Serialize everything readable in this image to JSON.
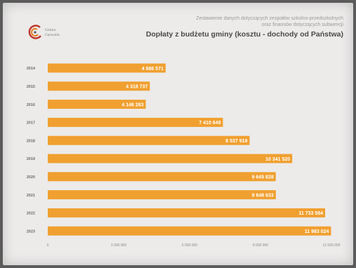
{
  "logo": {
    "line1": "Gmina",
    "line2": "Garwolin",
    "colors": [
      "#c0392b",
      "#e67e22",
      "#555555"
    ]
  },
  "header": {
    "subtitle_line1": "Zestawienie danych dotyczących zespołów szkolno-przedszkolnych",
    "subtitle_line2": "oraz finansów dotyczących subwencji",
    "title": "Dopłaty z budżetu gminy (kosztu - dochody od Państwa)"
  },
  "chart_data": {
    "type": "bar",
    "orientation": "horizontal",
    "title": "Dopłaty z budżetu gminy (kosztu - dochody od Państwa)",
    "categories": [
      "2014",
      "2015",
      "2016",
      "2017",
      "2018",
      "2019",
      "2020",
      "2021",
      "2022",
      "2023"
    ],
    "values": [
      4986571,
      4318737,
      4146283,
      7410649,
      8537919,
      10341520,
      9645828,
      9648633,
      11733584,
      11983024
    ],
    "value_labels": [
      "4 986 571",
      "4 318 737",
      "4 146 283",
      "7 410 649",
      "8 537 919",
      "10 341 520",
      "9 645 828",
      "9 648 633",
      "11 733 584",
      "11 983 024"
    ],
    "xlim": [
      0,
      12000000
    ],
    "xticks": [
      0,
      3000000,
      6000000,
      9000000,
      12000000
    ],
    "xtick_labels": [
      "0",
      "3 000 000",
      "6 000 000",
      "9 000 000",
      "12 000 000"
    ],
    "grid": false,
    "bar_color": "#f0a030",
    "label_color": "#ffffff"
  }
}
